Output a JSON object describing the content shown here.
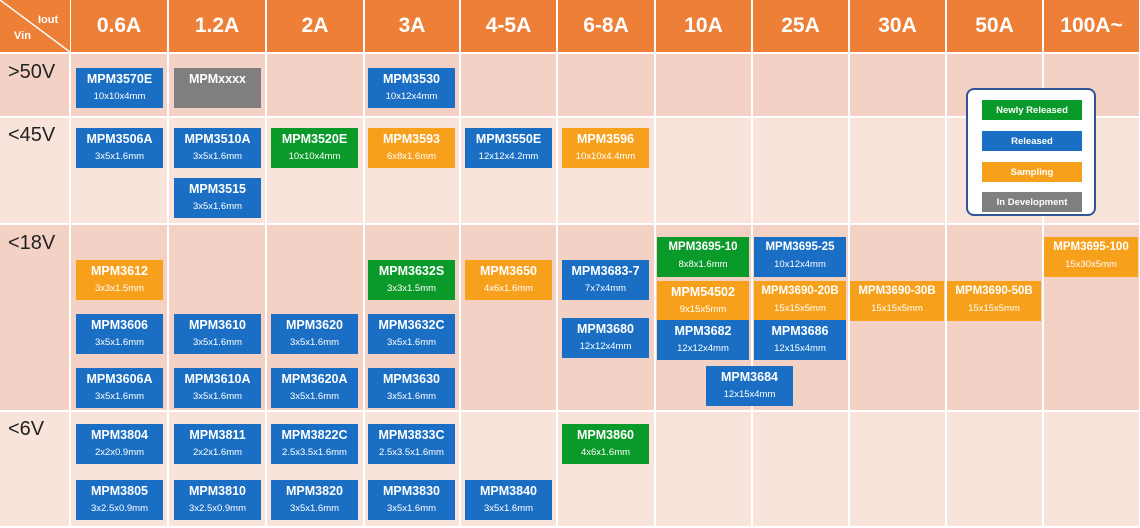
{
  "colors": {
    "header": "#ee7f37",
    "row_dark": "#f3d2c5",
    "row_light": "#f9e4dc",
    "newly_released": "#0a9a2a",
    "released": "#1a6fc4",
    "sampling": "#f7a01c",
    "in_development": "#7f7f7f"
  },
  "corner": {
    "vin": "Vin",
    "iout": "Iout"
  },
  "columns": [
    "0.6A",
    "1.2A",
    "2A",
    "3A",
    "4-5A",
    "6-8A",
    "10A",
    "25A",
    "30A",
    "50A",
    "100A~"
  ],
  "rows": [
    ">50V",
    "<45V",
    "<18V",
    "<6V"
  ],
  "legend": {
    "newly_released": "Newly Released",
    "released": "Released",
    "sampling": "Sampling",
    "in_development": "In Development"
  },
  "modules": [
    {
      "part": "MPM3570E",
      "size": "10x10x4mm",
      "status": "released"
    },
    {
      "part": "MPMxxxx",
      "size": "",
      "status": "in_development"
    },
    {
      "part": "MPM3530",
      "size": "10x12x4mm",
      "status": "released"
    },
    {
      "part": "MPM3506A",
      "size": "3x5x1.6mm",
      "status": "released"
    },
    {
      "part": "MPM3510A",
      "size": "3x5x1.6mm",
      "status": "released"
    },
    {
      "part": "MPM3520E",
      "size": "10x10x4mm",
      "status": "newly_released"
    },
    {
      "part": "MPM3593",
      "size": "6x8x1.6mm",
      "status": "sampling"
    },
    {
      "part": "MPM3550E",
      "size": "12x12x4.2mm",
      "status": "released"
    },
    {
      "part": "MPM3596",
      "size": "10x10x4.4mm",
      "status": "sampling"
    },
    {
      "part": "MPM3515",
      "size": "3x5x1.6mm",
      "status": "released"
    },
    {
      "part": "MPM3612",
      "size": "3x3x1.5mm",
      "status": "sampling"
    },
    {
      "part": "MPM3632S",
      "size": "3x3x1.5mm",
      "status": "newly_released"
    },
    {
      "part": "MPM3650",
      "size": "4x6x1.6mm",
      "status": "sampling"
    },
    {
      "part": "MPM3683-7",
      "size": "7x7x4mm",
      "status": "released"
    },
    {
      "part": "MPM3695-10",
      "size": "8x8x1.6mm",
      "status": "newly_released"
    },
    {
      "part": "MPM3695-25",
      "size": "10x12x4mm",
      "status": "released"
    },
    {
      "part": "MPM3695-100",
      "size": "15x30x5mm",
      "status": "sampling"
    },
    {
      "part": "MPM54502",
      "size": "9x15x5mm",
      "status": "sampling"
    },
    {
      "part": "MPM3690-20B",
      "size": "15x15x5mm",
      "status": "sampling"
    },
    {
      "part": "MPM3690-30B",
      "size": "15x15x5mm",
      "status": "sampling"
    },
    {
      "part": "MPM3690-50B",
      "size": "15x15x5mm",
      "status": "sampling"
    },
    {
      "part": "MPM3606",
      "size": "3x5x1.6mm",
      "status": "released"
    },
    {
      "part": "MPM3610",
      "size": "3x5x1.6mm",
      "status": "released"
    },
    {
      "part": "MPM3620",
      "size": "3x5x1.6mm",
      "status": "released"
    },
    {
      "part": "MPM3632C",
      "size": "3x5x1.6mm",
      "status": "released"
    },
    {
      "part": "MPM3680",
      "size": "12x12x4mm",
      "status": "released"
    },
    {
      "part": "MPM3682",
      "size": "12x12x4mm",
      "status": "released"
    },
    {
      "part": "MPM3686",
      "size": "12x15x4mm",
      "status": "released"
    },
    {
      "part": "MPM3606A",
      "size": "3x5x1.6mm",
      "status": "released"
    },
    {
      "part": "MPM3610A",
      "size": "3x5x1.6mm",
      "status": "released"
    },
    {
      "part": "MPM3620A",
      "size": "3x5x1.6mm",
      "status": "released"
    },
    {
      "part": "MPM3630",
      "size": "3x5x1.6mm",
      "status": "released"
    },
    {
      "part": "MPM3684",
      "size": "12x15x4mm",
      "status": "released"
    },
    {
      "part": "MPM3804",
      "size": "2x2x0.9mm",
      "status": "released"
    },
    {
      "part": "MPM3811",
      "size": "2x2x1.6mm",
      "status": "released"
    },
    {
      "part": "MPM3822C",
      "size": "2.5x3.5x1.6mm",
      "status": "released"
    },
    {
      "part": "MPM3833C",
      "size": "2.5x3.5x1.6mm",
      "status": "released"
    },
    {
      "part": "MPM3860",
      "size": "4x6x1.6mm",
      "status": "newly_released"
    },
    {
      "part": "MPM3805",
      "size": "3x2.5x0.9mm",
      "status": "released"
    },
    {
      "part": "MPM3810",
      "size": "3x2.5x0.9mm",
      "status": "released"
    },
    {
      "part": "MPM3820",
      "size": "3x5x1.6mm",
      "status": "released"
    },
    {
      "part": "MPM3830",
      "size": "3x5x1.6mm",
      "status": "released"
    },
    {
      "part": "MPM3840",
      "size": "3x5x1.6mm",
      "status": "released"
    }
  ]
}
